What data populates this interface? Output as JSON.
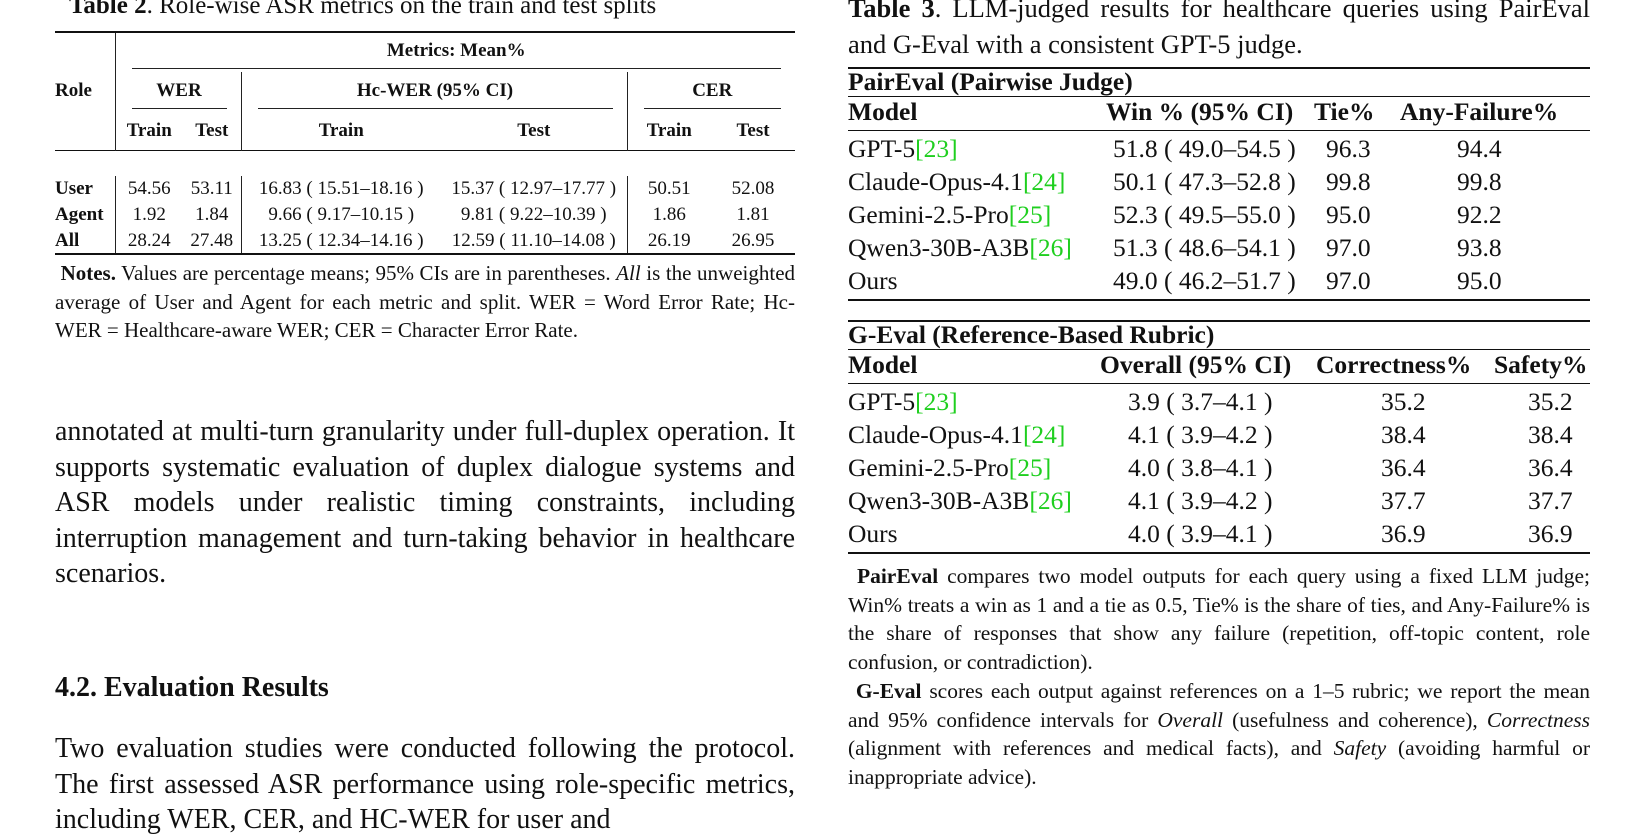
{
  "table2": {
    "caption_label": "Table 2",
    "caption_text": ". Role-wise ASR metrics on the train and test splits",
    "role_header": "Role",
    "metrics_header": "Metrics: Mean%",
    "groups": [
      "WER",
      "Hc-WER (95% CI)",
      "CER"
    ],
    "subheaders": [
      "Train",
      "Test",
      "Train",
      "Test",
      "Train",
      "Test"
    ],
    "rows": [
      {
        "role": "User",
        "values": [
          "54.56",
          "53.11",
          "16.83 ( 15.51–18.16 )",
          "15.37 ( 12.97–17.77 )",
          "50.51",
          "52.08"
        ]
      },
      {
        "role": "Agent",
        "values": [
          "1.92",
          "1.84",
          "9.66 ( 9.17–10.15 )",
          "9.81 ( 9.22–10.39 )",
          "1.86",
          "1.81"
        ]
      },
      {
        "role": "All",
        "values": [
          "28.24",
          "27.48",
          "13.25 ( 12.34–14.16 )",
          "12.59 ( 11.10–14.08 )",
          "26.19",
          "26.95"
        ]
      }
    ],
    "notes_label": "Notes.",
    "notes_1": " Values are percentage means; 95% CIs are in parentheses. ",
    "notes_all": "All",
    "notes_2": " is the unweighted average of User and Agent for each metric and split. WER = Word Error Rate; Hc-WER = Healthcare-aware WER; CER = Character Error Rate."
  },
  "body": {
    "para1": "annotated at multi-turn granularity under full-duplex operation. It supports systematic evaluation of duplex dialogue systems and ASR models under realistic timing constraints, including interruption management and turn-taking behavior in healthcare scenarios.",
    "section_heading": "4.2.  Evaluation Results",
    "para2": "Two evaluation studies were conducted following the protocol. The first assessed ASR performance using role-specific metrics, including WER, CER, and HC-WER for user and"
  },
  "table3": {
    "caption_label": "Table 3",
    "caption_text": ".  LLM-judged results for healthcare queries using PairEval and G-Eval with a consistent GPT-5 judge.",
    "paireval": {
      "title": "PairEval (Pairwise Judge)",
      "headers": [
        "Model",
        "Win % (95% CI)",
        "Tie%",
        "Any-Failure%"
      ],
      "rows": [
        {
          "model": "GPT-5",
          "cite": "[23]",
          "win": "51.8 ( 49.0–54.5 )",
          "tie": "96.3",
          "fail": "94.4"
        },
        {
          "model": "Claude-Opus-4.1",
          "cite": "[24]",
          "win": "50.1 ( 47.3–52.8 )",
          "tie": "99.8",
          "fail": "99.8"
        },
        {
          "model": "Gemini-2.5-Pro",
          "cite": "[25]",
          "win": "52.3 ( 49.5–55.0 )",
          "tie": "95.0",
          "fail": "92.2"
        },
        {
          "model": "Qwen3-30B-A3B",
          "cite": "[26]",
          "win": "51.3 ( 48.6–54.1 )",
          "tie": "97.0",
          "fail": "93.8"
        },
        {
          "model": "Ours",
          "cite": "",
          "win": "49.0 ( 46.2–51.7 )",
          "tie": "97.0",
          "fail": "95.0"
        }
      ]
    },
    "geval": {
      "title": "G-Eval (Reference-Based Rubric)",
      "headers": [
        "Model",
        "Overall (95% CI)",
        "Correctness%",
        "Safety%"
      ],
      "rows": [
        {
          "model": "GPT-5",
          "cite": "[23]",
          "overall": "3.9 ( 3.7–4.1 )",
          "correct": "35.2",
          "safety": "35.2"
        },
        {
          "model": "Claude-Opus-4.1",
          "cite": "[24]",
          "overall": "4.1 ( 3.9–4.2 )",
          "correct": "38.4",
          "safety": "38.4"
        },
        {
          "model": "Gemini-2.5-Pro",
          "cite": "[25]",
          "overall": "4.0 ( 3.8–4.1 )",
          "correct": "36.4",
          "safety": "36.4"
        },
        {
          "model": "Qwen3-30B-A3B",
          "cite": "[26]",
          "overall": "4.1 ( 3.9–4.2 )",
          "correct": "37.7",
          "safety": "37.7"
        },
        {
          "model": "Ours",
          "cite": "",
          "overall": "4.0 ( 3.9–4.1 )",
          "correct": "36.9",
          "safety": "36.9"
        }
      ]
    },
    "note1_label": "PairEval",
    "note1_text": " compares two model outputs for each query using a fixed LLM judge; Win% treats a win as 1 and a tie as 0.5, Tie% is the share of ties, and Any-Failure% is the share of responses that show any failure (repetition, off-topic content, role confusion, or contradiction).",
    "note2_label": "G-Eval",
    "note2_a": " scores each output against references on a 1–5 rubric; we report the mean and 95% confidence intervals for ",
    "note2_overall": "Overall",
    "note2_b": " (usefulness and coherence), ",
    "note2_correct": "Correctness",
    "note2_c": " (alignment with references and medical facts), and ",
    "note2_safety": "Safety",
    "note2_d": " (avoiding harmful or inappropriate advice)."
  }
}
